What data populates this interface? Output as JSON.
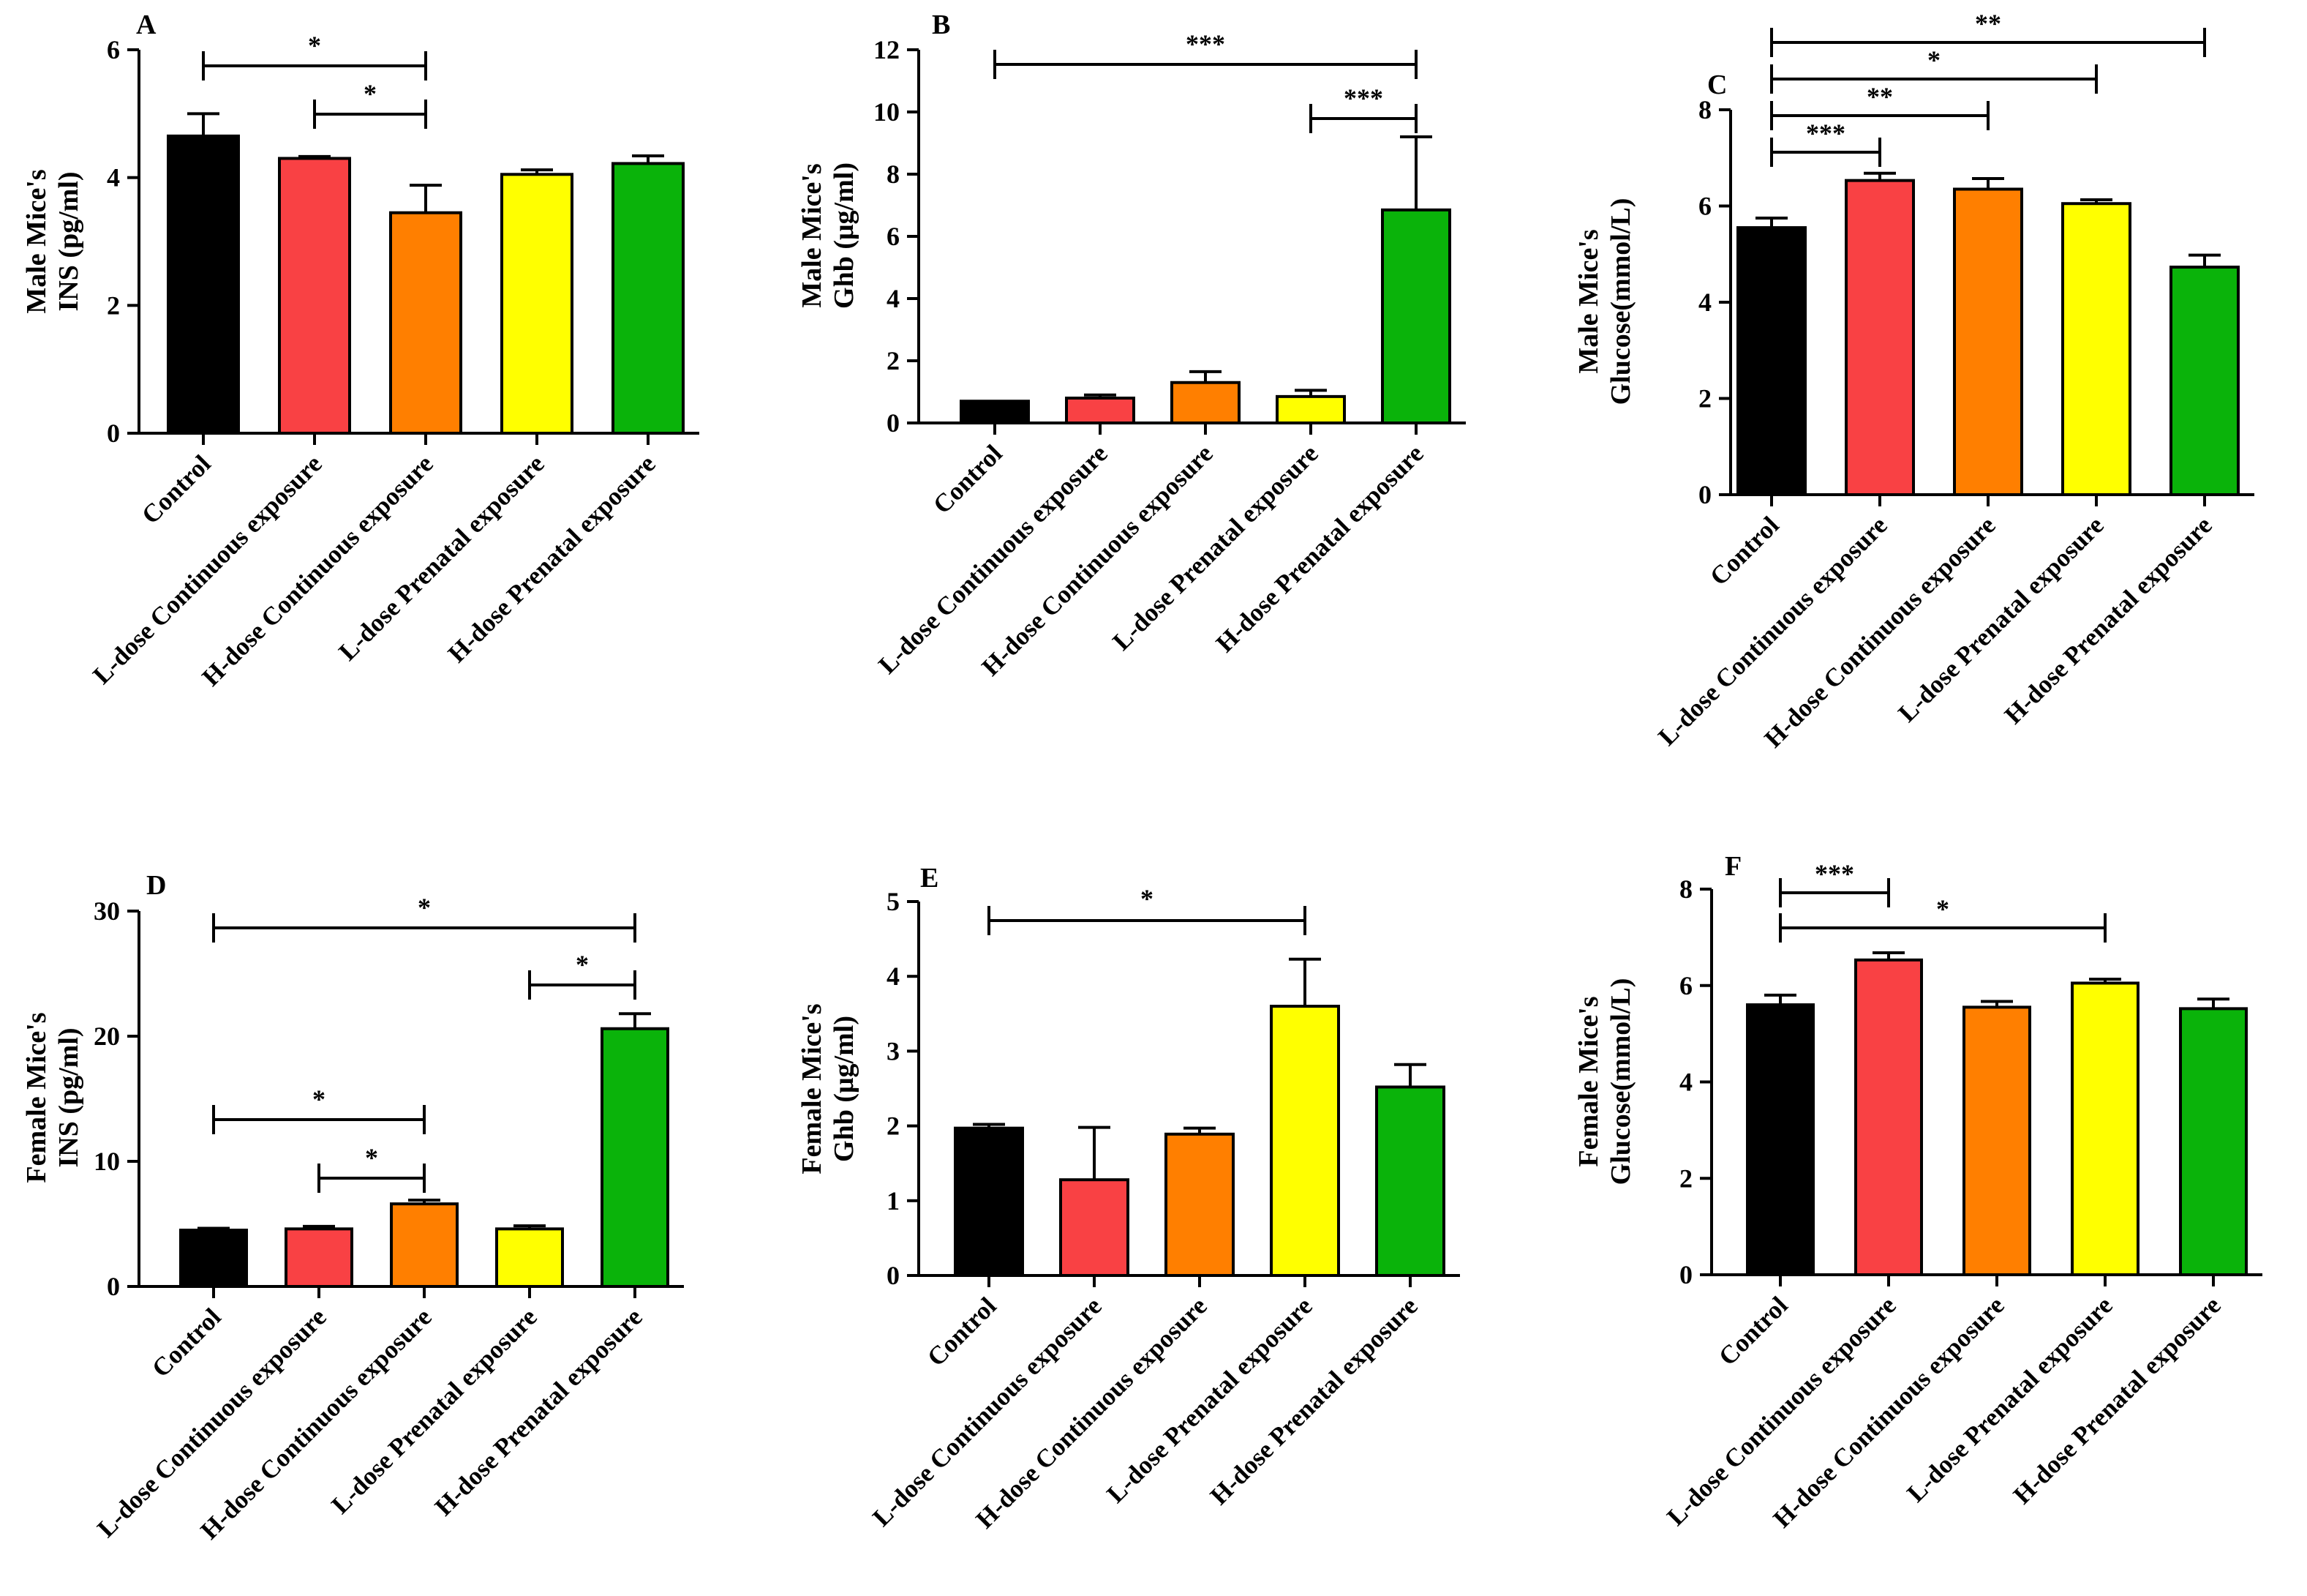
{
  "categories": [
    "Control",
    "L-dose Continuous exposure",
    "H-dose Continuous exposure",
    "L-dose Prenatal exposure",
    "H-dose Prenatal exposure"
  ],
  "colors": [
    "#000000",
    "#f94144",
    "#ff7f00",
    "#ffff00",
    "#0ab30a"
  ],
  "chart_data": [
    {
      "type": "bar",
      "panel": "A",
      "ylabel": [
        "Male Mice's",
        "INS (pg/ml)"
      ],
      "ylim": [
        0,
        6
      ],
      "yticks": [
        0,
        2,
        4,
        6
      ],
      "tick_labels": [
        "0",
        "2",
        "4",
        "6"
      ],
      "values": [
        4.65,
        4.3,
        3.45,
        4.05,
        4.22
      ],
      "errors": [
        0.35,
        0.03,
        0.43,
        0.07,
        0.12
      ],
      "comparisons": [
        {
          "from": 0,
          "to": 2,
          "label": "*",
          "level": 1
        },
        {
          "from": 1,
          "to": 2,
          "label": "*",
          "level": 0
        }
      ]
    },
    {
      "type": "bar",
      "panel": "B",
      "ylabel": [
        "Male Mice's",
        "Ghb (μg/ml)"
      ],
      "ylim": [
        0,
        12
      ],
      "yticks": [
        0,
        2,
        4,
        6,
        8,
        10,
        12
      ],
      "tick_labels": [
        "0",
        "2",
        "4",
        "6",
        "8",
        "10",
        "12"
      ],
      "values": [
        0.7,
        0.8,
        1.3,
        0.85,
        6.85
      ],
      "errors": [
        0.0,
        0.1,
        0.35,
        0.2,
        2.35
      ],
      "comparisons": [
        {
          "from": 0,
          "to": 4,
          "label": "***",
          "level": 1
        },
        {
          "from": 3,
          "to": 4,
          "label": "***",
          "level": 0
        }
      ]
    },
    {
      "type": "bar",
      "panel": "C",
      "ylabel": [
        "Male Mice's",
        "Glucose(mmol/L)"
      ],
      "ylim": [
        0,
        8
      ],
      "yticks": [
        0,
        2,
        4,
        6,
        8
      ],
      "tick_labels": [
        "0",
        "2",
        "4",
        "6",
        "8"
      ],
      "values": [
        5.55,
        6.53,
        6.35,
        6.05,
        4.73
      ],
      "errors": [
        0.2,
        0.15,
        0.22,
        0.08,
        0.25
      ],
      "comparisons": [
        {
          "from": 0,
          "to": 1,
          "label": "***",
          "level": 0
        },
        {
          "from": 0,
          "to": 2,
          "label": "**",
          "level": 1
        },
        {
          "from": 0,
          "to": 3,
          "label": "*",
          "level": 2
        },
        {
          "from": 0,
          "to": 4,
          "label": "**",
          "level": 3
        }
      ]
    },
    {
      "type": "bar",
      "panel": "D",
      "ylabel": [
        "Female Mice's",
        "INS (pg/ml)"
      ],
      "ylim": [
        0,
        30
      ],
      "yticks": [
        0,
        10,
        20,
        30
      ],
      "tick_labels": [
        "0",
        "10",
        "20",
        "30"
      ],
      "values": [
        4.5,
        4.6,
        6.6,
        4.6,
        20.6
      ],
      "errors": [
        0.15,
        0.2,
        0.3,
        0.25,
        1.2
      ],
      "comparisons": [
        {
          "from": 1,
          "to": 2,
          "label": "*",
          "level": 0
        },
        {
          "from": 0,
          "to": 2,
          "label": "*",
          "level": 1
        },
        {
          "from": 3,
          "to": 4,
          "label": "*",
          "level": 2
        },
        {
          "from": 0,
          "to": 4,
          "label": "*",
          "level": 3
        }
      ]
    },
    {
      "type": "bar",
      "panel": "E",
      "ylabel": [
        "Female Mice's",
        "Ghb (μg/ml)"
      ],
      "ylim": [
        0,
        5
      ],
      "yticks": [
        0,
        1,
        2,
        3,
        4,
        5
      ],
      "tick_labels": [
        "0",
        "1",
        "2",
        "3",
        "4",
        "5"
      ],
      "values": [
        1.97,
        1.28,
        1.89,
        3.6,
        2.52
      ],
      "errors": [
        0.05,
        0.7,
        0.08,
        0.63,
        0.3
      ],
      "comparisons": [
        {
          "from": 0,
          "to": 3,
          "label": "*",
          "level": 0
        }
      ]
    },
    {
      "type": "bar",
      "panel": "F",
      "ylabel": [
        "Female Mice's",
        "Glucose(mmol/L)"
      ],
      "ylim": [
        0,
        8
      ],
      "yticks": [
        0,
        2,
        4,
        6,
        8
      ],
      "tick_labels": [
        "0",
        "2",
        "4",
        "6",
        "8"
      ],
      "values": [
        5.6,
        6.53,
        5.55,
        6.05,
        5.52
      ],
      "errors": [
        0.2,
        0.15,
        0.12,
        0.08,
        0.2
      ],
      "comparisons": [
        {
          "from": 0,
          "to": 3,
          "label": "*",
          "level": 0
        },
        {
          "from": 0,
          "to": 1,
          "label": "***",
          "level": 1
        }
      ]
    }
  ]
}
